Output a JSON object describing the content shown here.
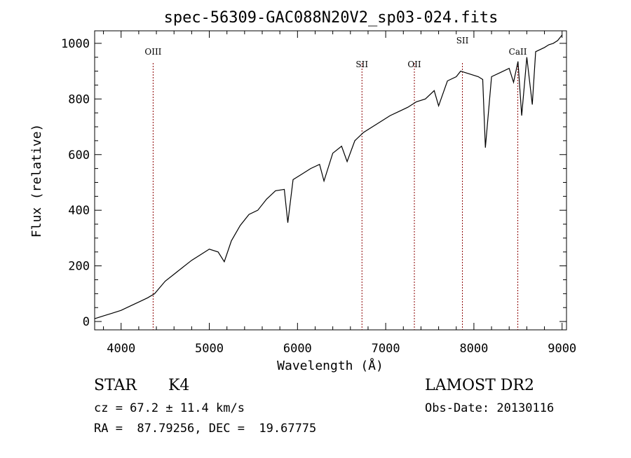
{
  "chart_data": {
    "type": "line",
    "title": "spec-56309-GAC088N20V2_sp03-024.fits",
    "xlabel": "Wavelength (Å)",
    "ylabel": "Flux (relative)",
    "xlim": [
      3700,
      9050
    ],
    "ylim": [
      -30,
      1045
    ],
    "x_ticks": [
      4000,
      5000,
      6000,
      7000,
      8000,
      9000
    ],
    "y_ticks": [
      0,
      200,
      400,
      600,
      800,
      1000
    ],
    "grid": false,
    "line_color": "#000000",
    "line_marker_color": "#8b0000",
    "series": [
      {
        "x": [
          3700,
          3800,
          3900,
          4000,
          4100,
          4200,
          4300,
          4380,
          4500,
          4600,
          4700,
          4800,
          4900,
          5000,
          5100,
          5170,
          5250,
          5350,
          5450,
          5550,
          5650,
          5750,
          5850,
          5890,
          5950,
          6050,
          6150,
          6250,
          6300,
          6400,
          6500,
          6563,
          6650,
          6750,
          6850,
          6950,
          7050,
          7150,
          7250,
          7350,
          7450,
          7550,
          7600,
          7700,
          7800,
          7850,
          7950,
          8050,
          8100,
          8130,
          8200,
          8300,
          8400,
          8450,
          8500,
          8542,
          8600,
          8662,
          8700,
          8800,
          8850,
          8900,
          8950,
          9000
        ],
        "y": [
          10,
          20,
          30,
          40,
          55,
          70,
          85,
          100,
          145,
          170,
          195,
          220,
          240,
          260,
          250,
          215,
          290,
          345,
          385,
          400,
          440,
          470,
          475,
          355,
          510,
          530,
          550,
          565,
          505,
          605,
          630,
          575,
          650,
          680,
          700,
          720,
          740,
          755,
          770,
          790,
          800,
          830,
          775,
          865,
          880,
          900,
          890,
          880,
          870,
          625,
          880,
          895,
          910,
          860,
          935,
          740,
          950,
          780,
          970,
          985,
          995,
          1000,
          1010,
          1030
        ]
      }
    ],
    "line_markers": [
      {
        "label": "OIII",
        "x": 4363
      },
      {
        "label": "SII",
        "x": 6731
      },
      {
        "label": "OII",
        "x": 7325
      },
      {
        "label": "SII",
        "x": 7870
      },
      {
        "label": "CaII",
        "x": 8498
      }
    ]
  },
  "info": {
    "object_class": "STAR",
    "subclass": "K4",
    "velocity": "cz = 67.2 ± 11.4 km/s",
    "coords": "RA =  87.79256, DEC =  19.67775",
    "survey": "LAMOST DR2",
    "obs_date": "Obs-Date: 20130116"
  }
}
